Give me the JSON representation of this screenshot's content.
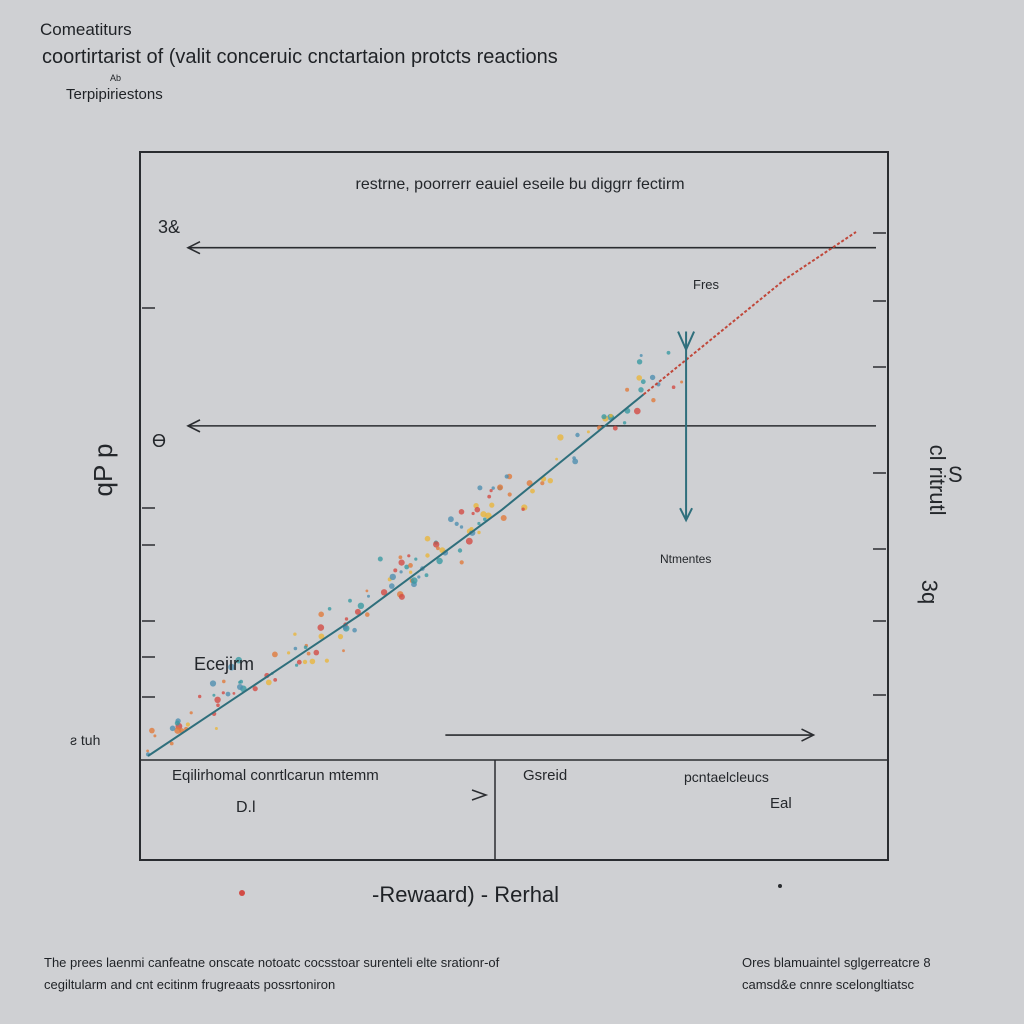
{
  "header": {
    "line1": "Comeatiturs",
    "line2": "coortirtarist of (valit conceruic cnctartaion protcts reactions",
    "note": "Ab",
    "line3": "Terpipiriestons"
  },
  "footer": {
    "left": [
      "The prees laenmi canfeatne onscate notoatc cocsstoar surenteli elte srationr-of",
      "cegiltularm and cnt ecitinm frugreaats possrtoniron"
    ],
    "right": [
      "Ores blamuaintel sglgerreatcre 8",
      "camsd&e cnnre scelongltiatsc"
    ]
  },
  "x_axis_label": "-Rewaard) - Rerhal",
  "chart_data": {
    "type": "scatter",
    "title": "restrne, poorrerr eauiel eseile bu diggrr fectirm",
    "xlabel": "-Rewaard) - Rerhal",
    "ylabel": "qP p",
    "right_label": "cl ritrutl",
    "right_tick_labels": [
      "S",
      "3q"
    ],
    "left_tick_labels": [
      "3&",
      "Ɵ",
      "ƨ tuh"
    ],
    "annotations": {
      "top_arrow": "Fres",
      "bottom_arrow": "Ntmentes",
      "curve_label": "Ecejirm"
    },
    "lower_panel": {
      "left_label": "Eqilirhomal conrtlcarun mtemm",
      "left_sub": "D.l",
      "right_label_a": "Gsreid",
      "right_label_b": "pcntaelcleucs",
      "right_sub": "Eal"
    },
    "xlim": [
      0,
      10
    ],
    "ylim": [
      0,
      10
    ],
    "curve": {
      "x": [
        0,
        1,
        2,
        3,
        4,
        5,
        6,
        7,
        8,
        9,
        10
      ],
      "y": [
        0,
        0.9,
        1.8,
        2.7,
        3.7,
        4.7,
        5.8,
        6.9,
        8.0,
        9.1,
        10.0
      ]
    },
    "reference_lines": [
      {
        "y": 9.7,
        "from_x": 10,
        "to_x": 0
      },
      {
        "y": 6.3,
        "from_x": 10,
        "to_x": 0
      },
      {
        "y": 0.4,
        "from_x": 4.2,
        "to_x": 9.4
      }
    ],
    "vertical_marker": {
      "x": 7.6,
      "y_top": 8.1,
      "y_bottom": 4.5
    },
    "colors": {
      "curve": "#2f6f7c",
      "curve_tip": "#c0473a",
      "dots": [
        "#3a9aa3",
        "#e07a3c",
        "#e8b53d",
        "#d24b45",
        "#4f8fb0"
      ],
      "axis": "#2a2c30"
    }
  }
}
